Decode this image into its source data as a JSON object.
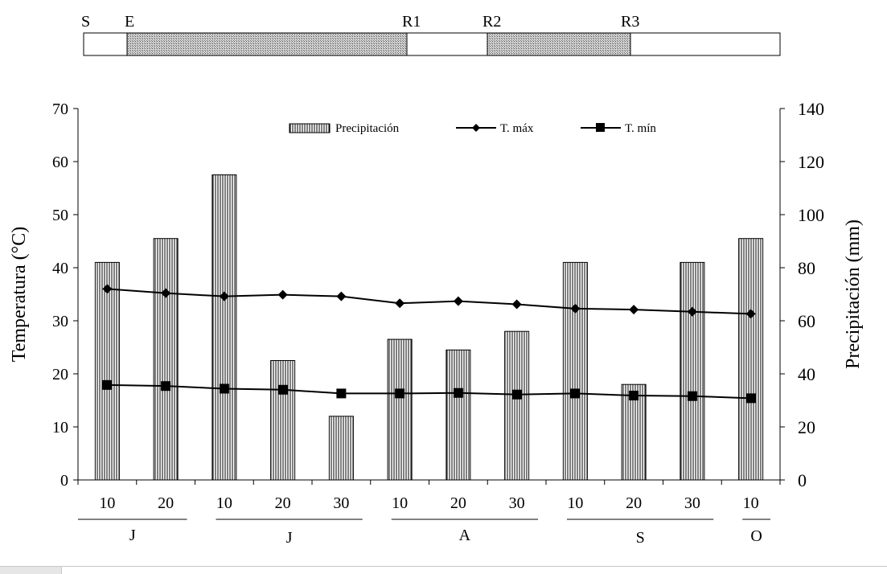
{
  "stage_bar": {
    "labels": [
      "S",
      "E",
      "R1",
      "R2",
      "R3"
    ],
    "shaded_spans": [
      [
        "E",
        "R1"
      ],
      [
        "R2",
        "R3"
      ]
    ]
  },
  "chart_data": {
    "type": "bar+line",
    "x_day_labels": [
      "10",
      "20",
      "10",
      "20",
      "30",
      "10",
      "20",
      "30",
      "10",
      "20",
      "30",
      "10"
    ],
    "month_groups": [
      {
        "label": "J",
        "ticks": [
          0,
          1
        ]
      },
      {
        "label": "J",
        "ticks": [
          2,
          3,
          4
        ]
      },
      {
        "label": "A",
        "ticks": [
          5,
          6,
          7
        ]
      },
      {
        "label": "S",
        "ticks": [
          8,
          9,
          10
        ]
      },
      {
        "label": "O",
        "ticks": [
          11
        ]
      }
    ],
    "ylabel_left": "Temperatura (°C)",
    "ylabel_right": "Precipitación (mm)",
    "ylim_left": [
      0,
      70
    ],
    "ylim_right": [
      0,
      140
    ],
    "yticks_left": [
      0,
      10,
      20,
      30,
      40,
      50,
      60,
      70
    ],
    "yticks_right": [
      0,
      20,
      40,
      60,
      80,
      100,
      120,
      140
    ],
    "grid": false,
    "legend_placement": "top",
    "series": [
      {
        "name": "Precipitación",
        "type": "bar",
        "axis": "right",
        "pattern": "vertical-hatch",
        "values": [
          82,
          91,
          115,
          45,
          24,
          53,
          49,
          56,
          82,
          36,
          82,
          91
        ]
      },
      {
        "name": "T. máx",
        "type": "line",
        "axis": "left",
        "marker": "diamond",
        "values": [
          36,
          35.2,
          34.6,
          34.9,
          34.6,
          33.3,
          33.7,
          33.1,
          32.3,
          32.1,
          31.7,
          31.3
        ]
      },
      {
        "name": "T. mín",
        "type": "line",
        "axis": "left",
        "marker": "square",
        "values": [
          17.9,
          17.7,
          17.2,
          17,
          16.3,
          16.3,
          16.4,
          16.1,
          16.3,
          15.9,
          15.8,
          15.4
        ]
      }
    ]
  }
}
